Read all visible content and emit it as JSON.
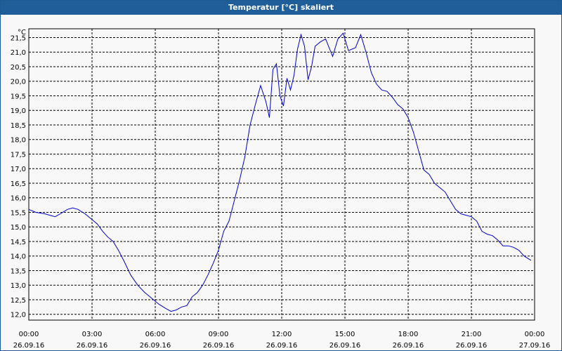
{
  "window": {
    "title": "Temperatur [°C] skaliert"
  },
  "colors": {
    "titlebar": "#1f5e98",
    "series": "#0000cc",
    "grid": "#000000",
    "background": "#f8f8f8"
  },
  "chart_data": {
    "type": "line",
    "title": "Temperatur [°C] skaliert",
    "ylabel": "°C",
    "xlabel": "",
    "grid": true,
    "grid_style": "dashed",
    "ylim": [
      11.8,
      21.8
    ],
    "xlim": [
      "26.09.16 00:00",
      "27.09.16 00:00"
    ],
    "y_ticks": [
      "12,0",
      "12,5",
      "13,0",
      "13,5",
      "14,0",
      "14,5",
      "15,0",
      "15,5",
      "16,0",
      "16,5",
      "17,0",
      "17,5",
      "18,0",
      "18,5",
      "19,0",
      "19,5",
      "20,0",
      "20,5",
      "21,0",
      "21,5"
    ],
    "x_ticks": [
      {
        "time": "00:00",
        "date": "26.09.16"
      },
      {
        "time": "03:00",
        "date": "26.09.16"
      },
      {
        "time": "06:00",
        "date": "26.09.16"
      },
      {
        "time": "09:00",
        "date": "26.09.16"
      },
      {
        "time": "12:00",
        "date": "26.09.16"
      },
      {
        "time": "15:00",
        "date": "26.09.16"
      },
      {
        "time": "18:00",
        "date": "26.09.16"
      },
      {
        "time": "21:00",
        "date": "26.09.16"
      },
      {
        "time": "00:00",
        "date": "27.09.16"
      }
    ],
    "series": [
      {
        "points": [
          [
            "26.09.16 00:00",
            15.6
          ],
          [
            "26.09.16 00:20",
            15.5
          ],
          [
            "26.09.16 00:45",
            15.45
          ],
          [
            "26.09.16 01:00",
            15.4
          ],
          [
            "26.09.16 01:15",
            15.35
          ],
          [
            "26.09.16 01:30",
            15.45
          ],
          [
            "26.09.16 01:50",
            15.6
          ],
          [
            "26.09.16 02:05",
            15.65
          ],
          [
            "26.09.16 02:20",
            15.6
          ],
          [
            "26.09.16 02:40",
            15.45
          ],
          [
            "26.09.16 03:00",
            15.25
          ],
          [
            "26.09.16 03:15",
            15.1
          ],
          [
            "26.09.16 03:30",
            14.85
          ],
          [
            "26.09.16 03:45",
            14.65
          ],
          [
            "26.09.16 04:00",
            14.5
          ],
          [
            "26.09.16 04:15",
            14.2
          ],
          [
            "26.09.16 04:30",
            13.85
          ],
          [
            "26.09.16 04:50",
            13.35
          ],
          [
            "26.09.16 05:10",
            13.0
          ],
          [
            "26.09.16 05:30",
            12.75
          ],
          [
            "26.09.16 05:50",
            12.55
          ],
          [
            "26.09.16 06:10",
            12.35
          ],
          [
            "26.09.16 06:30",
            12.2
          ],
          [
            "26.09.16 06:45",
            12.1
          ],
          [
            "26.09.16 07:00",
            12.15
          ],
          [
            "26.09.16 07:15",
            12.25
          ],
          [
            "26.09.16 07:30",
            12.3
          ],
          [
            "26.09.16 07:45",
            12.6
          ],
          [
            "26.09.16 08:00",
            12.75
          ],
          [
            "26.09.16 08:15",
            13.0
          ],
          [
            "26.09.16 08:30",
            13.35
          ],
          [
            "26.09.16 08:45",
            13.75
          ],
          [
            "26.09.16 09:00",
            14.2
          ],
          [
            "26.09.16 09:15",
            14.85
          ],
          [
            "26.09.16 09:30",
            15.2
          ],
          [
            "26.09.16 09:45",
            15.9
          ],
          [
            "26.09.16 10:00",
            16.6
          ],
          [
            "26.09.16 10:15",
            17.4
          ],
          [
            "26.09.16 10:30",
            18.5
          ],
          [
            "26.09.16 10:45",
            19.2
          ],
          [
            "26.09.16 11:00",
            19.85
          ],
          [
            "26.09.16 11:15",
            19.3
          ],
          [
            "26.09.16 11:25",
            18.75
          ],
          [
            "26.09.16 11:35",
            20.4
          ],
          [
            "26.09.16 11:45",
            20.6
          ],
          [
            "26.09.16 11:55",
            19.5
          ],
          [
            "26.09.16 12:05",
            19.15
          ],
          [
            "26.09.16 12:15",
            20.1
          ],
          [
            "26.09.16 12:25",
            19.7
          ],
          [
            "26.09.16 12:35",
            20.2
          ],
          [
            "26.09.16 12:45",
            21.1
          ],
          [
            "26.09.16 12:55",
            21.6
          ],
          [
            "26.09.16 13:05",
            21.2
          ],
          [
            "26.09.16 13:15",
            20.05
          ],
          [
            "26.09.16 13:25",
            20.5
          ],
          [
            "26.09.16 13:35",
            21.2
          ],
          [
            "26.09.16 13:50",
            21.35
          ],
          [
            "26.09.16 14:05",
            21.45
          ],
          [
            "26.09.16 14:25",
            20.85
          ],
          [
            "26.09.16 14:40",
            21.45
          ],
          [
            "26.09.16 14:55",
            21.65
          ],
          [
            "26.09.16 15:10",
            21.05
          ],
          [
            "26.09.16 15:30",
            21.15
          ],
          [
            "26.09.16 15:45",
            21.6
          ],
          [
            "26.09.16 16:00",
            21.0
          ],
          [
            "26.09.16 16:15",
            20.3
          ],
          [
            "26.09.16 16:30",
            19.9
          ],
          [
            "26.09.16 16:45",
            19.7
          ],
          [
            "26.09.16 17:00",
            19.65
          ],
          [
            "26.09.16 17:15",
            19.45
          ],
          [
            "26.09.16 17:30",
            19.2
          ],
          [
            "26.09.16 17:45",
            19.05
          ],
          [
            "26.09.16 18:00",
            18.75
          ],
          [
            "26.09.16 18:15",
            18.25
          ],
          [
            "26.09.16 18:30",
            17.6
          ],
          [
            "26.09.16 18:45",
            16.95
          ],
          [
            "26.09.16 19:00",
            16.8
          ],
          [
            "26.09.16 19:15",
            16.5
          ],
          [
            "26.09.16 19:30",
            16.35
          ],
          [
            "26.09.16 19:45",
            16.2
          ],
          [
            "26.09.16 20:00",
            15.9
          ],
          [
            "26.09.16 20:15",
            15.6
          ],
          [
            "26.09.16 20:30",
            15.45
          ],
          [
            "26.09.16 20:45",
            15.4
          ],
          [
            "26.09.16 21:00",
            15.35
          ],
          [
            "26.09.16 21:15",
            15.2
          ],
          [
            "26.09.16 21:30",
            14.85
          ],
          [
            "26.09.16 21:45",
            14.75
          ],
          [
            "26.09.16 22:00",
            14.7
          ],
          [
            "26.09.16 22:15",
            14.55
          ],
          [
            "26.09.16 22:30",
            14.35
          ],
          [
            "26.09.16 22:45",
            14.35
          ],
          [
            "26.09.16 23:00",
            14.3
          ],
          [
            "26.09.16 23:15",
            14.2
          ],
          [
            "26.09.16 23:30",
            14.0
          ],
          [
            "26.09.16 23:50",
            13.85
          ]
        ]
      }
    ]
  }
}
